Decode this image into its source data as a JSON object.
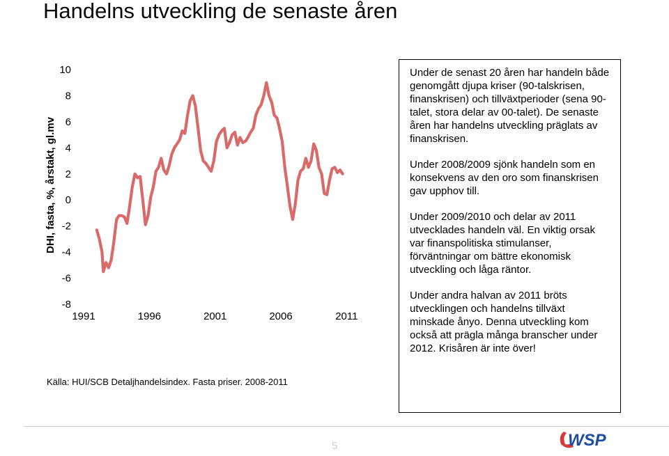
{
  "slide": {
    "title": "Handelns utveckling de senaste åren",
    "source": "Källa: HUI/SCB Detaljhandelsindex. Fasta priser. 2008-2011",
    "page_number": "5",
    "logo_text": "WSP"
  },
  "text_box": {
    "paragraphs": [
      "Under de senast 20 åren har handeln både genomgått djupa kriser (90-talskrisen, finanskrisen) och tillväxtperioder (sena 90-talet, stora delar av 00-talet). De senaste åren har handelns utveckling präglats av finanskrisen.",
      "Under 2008/2009 sjönk handeln som en konsekvens av den oro som finanskrisen gav upphov till.",
      "Under 2009/2010 och delar av 2011 utvecklades handeln väl. En viktig orsak var finanspolitiska stimulanser, förväntningar om bättre ekonomisk utveckling och låga räntor.",
      "Under andra halvan av 2011 bröts utvecklingen och handelns tillväxt minskade ånyo. Denna utveckling kom också att prägla många branscher under 2012. Krisåren är inte över!"
    ]
  },
  "colors": {
    "series": "#d96a6a",
    "logo_blue": "#1e4da0",
    "logo_red": "#d63a3a"
  },
  "chart_data": {
    "type": "line",
    "title": "",
    "xlabel": "",
    "ylabel": "DHI, fasta, %, årstakt, gl.mv",
    "xlim": [
      1991,
      2012.2
    ],
    "ylim": [
      -8,
      10
    ],
    "yticks": [
      -8,
      -6,
      -4,
      -2,
      0,
      2,
      4,
      6,
      8,
      10
    ],
    "xticks": [
      1991,
      1996,
      2001,
      2006,
      2011
    ],
    "grid": false,
    "legend": "none",
    "series": [
      {
        "name": "",
        "points": [
          [
            1992.0,
            -2.3
          ],
          [
            1992.2,
            -3.0
          ],
          [
            1992.4,
            -4.0
          ],
          [
            1992.5,
            -5.5
          ],
          [
            1992.7,
            -4.8
          ],
          [
            1992.9,
            -5.2
          ],
          [
            1993.1,
            -4.6
          ],
          [
            1993.3,
            -3.2
          ],
          [
            1993.5,
            -1.5
          ],
          [
            1993.7,
            -1.2
          ],
          [
            1993.9,
            -1.2
          ],
          [
            1994.1,
            -1.3
          ],
          [
            1994.3,
            -1.8
          ],
          [
            1994.5,
            -0.5
          ],
          [
            1994.7,
            1.0
          ],
          [
            1994.9,
            2.0
          ],
          [
            1995.1,
            1.7
          ],
          [
            1995.3,
            1.8
          ],
          [
            1995.5,
            0.0
          ],
          [
            1995.7,
            -1.9
          ],
          [
            1995.9,
            -1.2
          ],
          [
            1996.1,
            0.2
          ],
          [
            1996.3,
            1.0
          ],
          [
            1996.5,
            2.2
          ],
          [
            1996.7,
            2.5
          ],
          [
            1996.9,
            3.2
          ],
          [
            1997.1,
            2.3
          ],
          [
            1997.3,
            2.0
          ],
          [
            1997.5,
            2.6
          ],
          [
            1997.7,
            3.5
          ],
          [
            1997.9,
            4.0
          ],
          [
            1998.1,
            4.3
          ],
          [
            1998.3,
            4.6
          ],
          [
            1998.5,
            5.3
          ],
          [
            1998.7,
            5.1
          ],
          [
            1998.9,
            6.5
          ],
          [
            1999.1,
            7.6
          ],
          [
            1999.3,
            8.0
          ],
          [
            1999.5,
            7.2
          ],
          [
            1999.7,
            5.5
          ],
          [
            1999.9,
            3.8
          ],
          [
            2000.1,
            3.0
          ],
          [
            2000.3,
            2.8
          ],
          [
            2000.5,
            2.5
          ],
          [
            2000.7,
            2.2
          ],
          [
            2000.9,
            3.0
          ],
          [
            2001.1,
            4.5
          ],
          [
            2001.3,
            5.0
          ],
          [
            2001.5,
            5.3
          ],
          [
            2001.7,
            5.5
          ],
          [
            2001.9,
            4.0
          ],
          [
            2002.1,
            4.4
          ],
          [
            2002.3,
            5.0
          ],
          [
            2002.5,
            5.2
          ],
          [
            2002.7,
            4.2
          ],
          [
            2002.9,
            4.8
          ],
          [
            2003.1,
            4.4
          ],
          [
            2003.3,
            4.5
          ],
          [
            2003.5,
            4.8
          ],
          [
            2003.7,
            5.2
          ],
          [
            2003.9,
            5.5
          ],
          [
            2004.1,
            6.5
          ],
          [
            2004.3,
            7.0
          ],
          [
            2004.5,
            7.3
          ],
          [
            2004.7,
            8.0
          ],
          [
            2004.9,
            9.0
          ],
          [
            2005.1,
            8.0
          ],
          [
            2005.3,
            7.5
          ],
          [
            2005.5,
            6.5
          ],
          [
            2005.7,
            6.3
          ],
          [
            2005.9,
            5.5
          ],
          [
            2006.1,
            4.5
          ],
          [
            2006.3,
            2.5
          ],
          [
            2006.5,
            1.0
          ],
          [
            2006.7,
            -0.5
          ],
          [
            2006.9,
            -1.5
          ],
          [
            2007.1,
            -0.3
          ],
          [
            2007.3,
            1.5
          ],
          [
            2007.5,
            2.2
          ],
          [
            2007.7,
            2.4
          ],
          [
            2007.9,
            3.2
          ],
          [
            2008.1,
            2.5
          ],
          [
            2008.3,
            3.0
          ],
          [
            2008.5,
            4.3
          ],
          [
            2008.7,
            3.8
          ],
          [
            2008.9,
            2.5
          ],
          [
            2009.1,
            2.0
          ],
          [
            2009.3,
            0.5
          ],
          [
            2009.5,
            0.4
          ],
          [
            2009.7,
            1.5
          ],
          [
            2009.9,
            2.4
          ],
          [
            2010.1,
            2.5
          ],
          [
            2010.3,
            2.1
          ],
          [
            2010.5,
            2.3
          ],
          [
            2010.7,
            2.0
          ]
        ]
      }
    ]
  }
}
